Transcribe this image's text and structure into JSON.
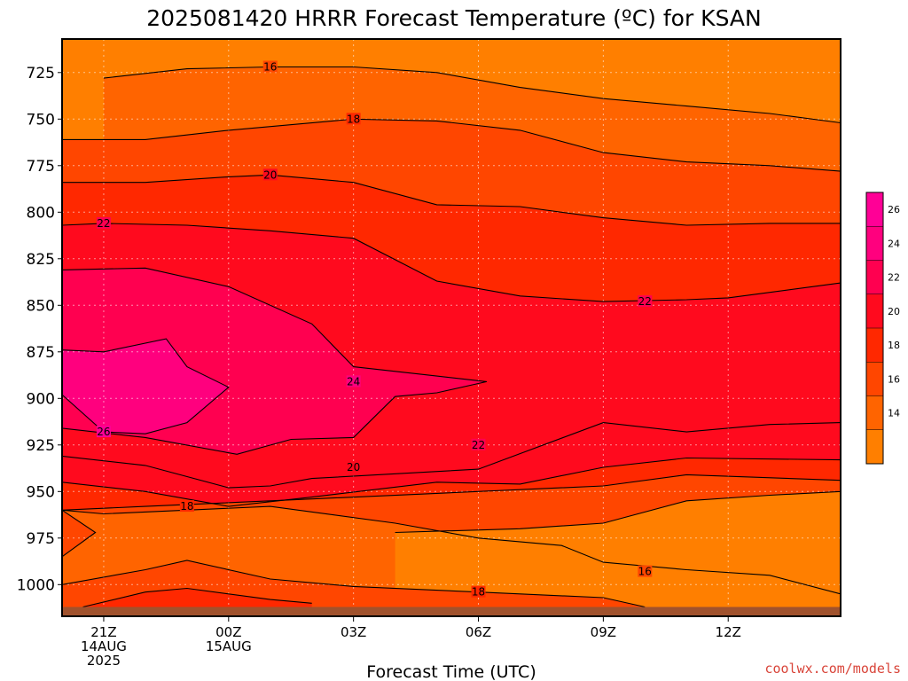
{
  "chart_data": {
    "type": "heatmap",
    "title": "2025081420 HRRR Forecast Temperature (ºC) for KSAN",
    "xlabel": "Forecast Time (UTC)",
    "ylabel": "",
    "credit": "coolwx.com/models",
    "y_ticks": [
      725,
      750,
      775,
      800,
      825,
      850,
      875,
      900,
      925,
      950,
      975,
      1000
    ],
    "ylim": [
      1017,
      707
    ],
    "x_ticks": [
      {
        "hour": 0,
        "lines": [
          "21Z",
          "14AUG",
          "2025"
        ]
      },
      {
        "hour": 3,
        "lines": [
          "00Z",
          "15AUG"
        ]
      },
      {
        "hour": 6,
        "lines": [
          "03Z"
        ]
      },
      {
        "hour": 9,
        "lines": [
          "06Z"
        ]
      },
      {
        "hour": 12,
        "lines": [
          "09Z"
        ]
      },
      {
        "hour": 15,
        "lines": [
          "12Z"
        ]
      }
    ],
    "xlim": [
      -1,
      17.7
    ],
    "colorbar": {
      "ticks": [
        14,
        16,
        18,
        20,
        22,
        24,
        26
      ],
      "levels": [
        12,
        14,
        16,
        18,
        20,
        22,
        24,
        26,
        28
      ],
      "colors": [
        "#ff7f00",
        "#ff6400",
        "#ff4600",
        "#ff2800",
        "#ff0a1e",
        "#ff0050",
        "#ff007e",
        "#ff0096"
      ]
    },
    "contours": [
      {
        "value": 16,
        "label": "16",
        "label_at": [
          4,
          722
        ],
        "points": [
          [
            0,
            728
          ],
          [
            2,
            723
          ],
          [
            4,
            722
          ],
          [
            6,
            722
          ],
          [
            8,
            725
          ],
          [
            10,
            733
          ],
          [
            12,
            739
          ],
          [
            14,
            743
          ],
          [
            16,
            747
          ],
          [
            17.7,
            752
          ]
        ]
      },
      {
        "value": 18,
        "label": "18",
        "label_at": [
          6,
          750
        ],
        "points": [
          [
            -1,
            761
          ],
          [
            1,
            761
          ],
          [
            3,
            756
          ],
          [
            6,
            750
          ],
          [
            8,
            751
          ],
          [
            10,
            756
          ],
          [
            12,
            768
          ],
          [
            14,
            773
          ],
          [
            16,
            775
          ],
          [
            17.7,
            778
          ]
        ]
      },
      {
        "value": 20,
        "label": "20",
        "label_at": [
          4,
          780
        ],
        "points": [
          [
            -1,
            784
          ],
          [
            1,
            784
          ],
          [
            3,
            781
          ],
          [
            4,
            780
          ],
          [
            6,
            784
          ],
          [
            8,
            796
          ],
          [
            10,
            797
          ],
          [
            12,
            803
          ],
          [
            14,
            807
          ],
          [
            16,
            806
          ],
          [
            17.7,
            806
          ]
        ]
      },
      {
        "value": 22,
        "label": "22",
        "label_at": [
          0,
          806
        ],
        "points": [
          [
            -1,
            807
          ],
          [
            0,
            806
          ],
          [
            2,
            807
          ],
          [
            4,
            810
          ],
          [
            6,
            814
          ],
          [
            8,
            837
          ],
          [
            10,
            845
          ],
          [
            12,
            848
          ],
          [
            14,
            847
          ],
          [
            15,
            846
          ],
          [
            17.7,
            838
          ]
        ]
      },
      {
        "value": 22,
        "label": "22",
        "label_at": [
          13,
          848
        ],
        "points": [
          [
            13,
            848
          ],
          [
            13.5,
            848
          ]
        ]
      },
      {
        "value": 24,
        "label": "24",
        "label_at": [
          6,
          891
        ],
        "points": [
          [
            -1,
            831
          ],
          [
            1,
            830
          ],
          [
            3,
            840
          ],
          [
            5,
            860
          ],
          [
            6,
            883
          ],
          [
            8,
            888
          ],
          [
            9.2,
            891
          ],
          [
            8,
            897
          ],
          [
            7,
            899
          ],
          [
            6.5,
            910
          ],
          [
            6,
            921
          ],
          [
            4.5,
            922
          ],
          [
            3.2,
            930
          ],
          [
            1,
            921
          ],
          [
            -1,
            916
          ]
        ]
      },
      {
        "value": 26,
        "label": "26",
        "label_at": [
          0,
          918
        ],
        "points": [
          [
            -1,
            898
          ],
          [
            0,
            918
          ],
          [
            1,
            919
          ],
          [
            2,
            913
          ],
          [
            3,
            894
          ],
          [
            2,
            883
          ],
          [
            1.5,
            868
          ],
          [
            0,
            875
          ],
          [
            -1,
            874
          ]
        ]
      },
      {
        "value": 22,
        "label": "22",
        "label_at": [
          9,
          925
        ],
        "points": [
          [
            -1,
            931
          ],
          [
            1,
            936
          ],
          [
            3,
            948
          ],
          [
            4,
            947
          ],
          [
            5,
            943
          ],
          [
            9,
            938
          ],
          [
            12,
            913
          ],
          [
            14,
            918
          ],
          [
            16,
            914
          ],
          [
            17.7,
            913
          ]
        ]
      },
      {
        "value": 20,
        "label": "20",
        "label_at": [
          6,
          937
        ],
        "points": [
          [
            -1,
            945
          ],
          [
            1,
            950
          ],
          [
            3,
            958
          ],
          [
            5,
            953
          ],
          [
            8,
            945
          ],
          [
            10,
            946
          ],
          [
            12,
            937
          ],
          [
            14,
            932
          ],
          [
            17.7,
            933
          ]
        ]
      },
      {
        "value": 18,
        "label": "18",
        "label_at": [
          2,
          958
        ],
        "points": [
          [
            -1,
            960
          ],
          [
            1,
            958
          ],
          [
            4,
            955
          ],
          [
            8,
            951
          ],
          [
            12,
            947
          ],
          [
            14,
            941
          ],
          [
            17.7,
            944
          ]
        ]
      },
      {
        "value": 16,
        "label": "16",
        "label_at": [
          13,
          993
        ],
        "points": [
          [
            -1,
            985
          ],
          [
            -0.2,
            972
          ],
          [
            -1,
            960
          ],
          [
            0,
            962
          ],
          [
            4,
            958
          ],
          [
            7,
            967
          ],
          [
            9,
            975
          ],
          [
            11,
            979
          ],
          [
            12,
            988
          ],
          [
            14,
            992
          ],
          [
            16,
            995
          ],
          [
            17.7,
            1005
          ]
        ]
      },
      {
        "value": 16,
        "label": "",
        "label_at": [
          0,
          0
        ],
        "points": [
          [
            7,
            972
          ],
          [
            10,
            970
          ],
          [
            12,
            967
          ],
          [
            14,
            955
          ],
          [
            16,
            952
          ],
          [
            17.7,
            950
          ]
        ]
      },
      {
        "value": 18,
        "label": "18",
        "label_at": [
          9,
          1004
        ],
        "points": [
          [
            -1,
            1000
          ],
          [
            1,
            992
          ],
          [
            2,
            987
          ],
          [
            4,
            997
          ],
          [
            6,
            1001
          ],
          [
            9,
            1004
          ],
          [
            10,
            1005
          ],
          [
            12,
            1007
          ],
          [
            13,
            1012
          ]
        ]
      },
      {
        "value": 20,
        "label": "",
        "label_at": [
          0,
          0
        ],
        "points": [
          [
            -0.5,
            1012
          ],
          [
            1,
            1004
          ],
          [
            2,
            1002
          ],
          [
            4,
            1008
          ],
          [
            5,
            1010
          ]
        ]
      }
    ],
    "ground_pressure": 1012
  }
}
